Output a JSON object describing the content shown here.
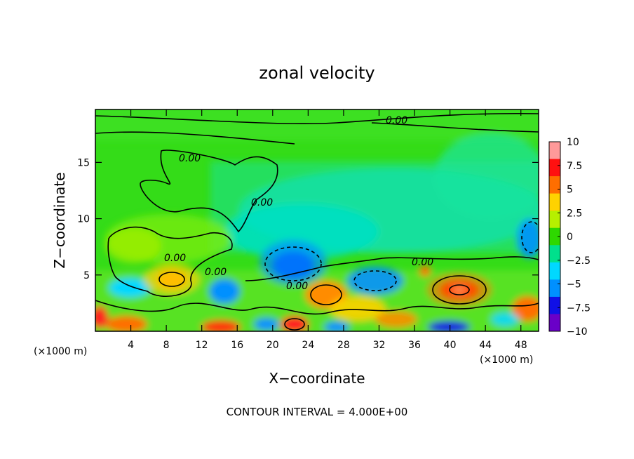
{
  "chart_data": {
    "type": "heatmap",
    "title": "zonal velocity",
    "xlabel": "X−coordinate",
    "ylabel": "Z−coordinate",
    "x_unit": "(×1000 m)",
    "xlim": [
      0,
      50
    ],
    "ylim": [
      0,
      19.7
    ],
    "x_ticks": [
      4,
      8,
      12,
      16,
      20,
      24,
      28,
      32,
      36,
      40,
      44,
      48
    ],
    "y_ticks": [
      5,
      10,
      15
    ],
    "color_scale": {
      "ticks": [
        10,
        7.5,
        5,
        2.5,
        0,
        -2.5,
        -5,
        -7.5,
        -10
      ],
      "tick_labels": [
        "10",
        "7.5",
        "5",
        "2.5",
        "0",
        "−2.5",
        "−5",
        "−7.5",
        "−10"
      ],
      "colors_high_to_low": [
        "#ff9a9a",
        "#ff1010",
        "#ff6e00",
        "#ffd200",
        "#b6f000",
        "#2ed800",
        "#00e08c",
        "#00d8ff",
        "#0090ff",
        "#1010e6",
        "#6a00c8"
      ]
    },
    "contour_labels": [
      "0.00",
      "0.00",
      "0.00",
      "0.00",
      "0.00",
      "0.00",
      "0.00"
    ],
    "contour_interval_text": "CONTOUR INTERVAL = 4.000E+00",
    "anomalies": [
      {
        "x": 21,
        "z": 6,
        "value": -7.5
      },
      {
        "x": 31,
        "z": 5,
        "value": -4
      },
      {
        "x": 40,
        "z": 3.5,
        "value": 9
      },
      {
        "x": 35.5,
        "z": 6,
        "value": 4
      },
      {
        "x": 9,
        "z": 4.8,
        "value": 4.5
      },
      {
        "x": 25,
        "z": 3,
        "value": 5
      },
      {
        "x": 28.5,
        "z": 2,
        "value": 4.5
      },
      {
        "x": 22,
        "z": 0.6,
        "value": 8
      },
      {
        "x": 14,
        "z": 0.4,
        "value": 8
      },
      {
        "x": 4.5,
        "z": 0.3,
        "value": 6
      },
      {
        "x": 0.5,
        "z": 1.3,
        "value": 7
      },
      {
        "x": 49,
        "z": 2,
        "value": 6
      },
      {
        "x": 36,
        "z": 1.5,
        "value": 5
      },
      {
        "x": 40,
        "z": 0.3,
        "value": -8
      },
      {
        "x": 14.5,
        "z": 4,
        "value": -4
      },
      {
        "x": 6,
        "z": 3.5,
        "value": -3
      },
      {
        "x": 19,
        "z": 0.6,
        "value": -6
      },
      {
        "x": 48.5,
        "z": 8.5,
        "value": -4
      },
      {
        "x": 33,
        "z": 8,
        "value": -2
      },
      {
        "x": 3,
        "z": 7,
        "value": 2
      },
      {
        "x": 17,
        "z": 18.8,
        "value": 1
      },
      {
        "x": 47,
        "z": 12,
        "value": -1.5
      }
    ]
  }
}
